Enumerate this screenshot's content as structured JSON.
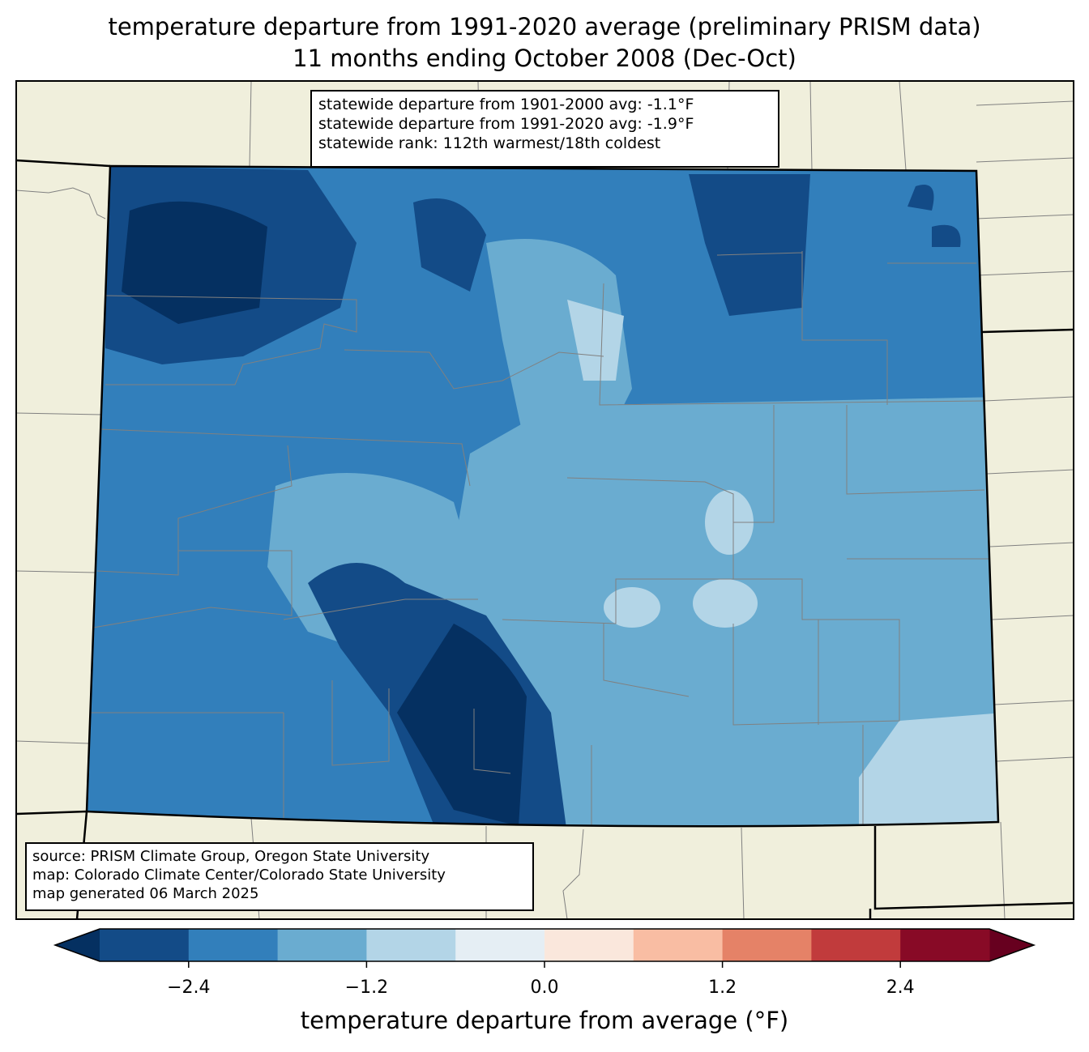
{
  "title": {
    "line1": "temperature departure from 1991-2020 average (preliminary PRISM data)",
    "line2": "11 months ending October 2008 (Dec-Oct)"
  },
  "stats_box": {
    "line1": "statewide departure from 1901-2000 avg: -1.1°F",
    "line2": "statewide departure from 1991-2020 avg: -1.9°F",
    "line3": "statewide rank: 112th warmest/18th coldest"
  },
  "source_box": {
    "line1": "source: PRISM Climate Group, Oregon State University",
    "line2": "map: Colorado Climate Center/Colorado State University",
    "line3": "map generated 06 March 2025"
  },
  "colorbar": {
    "label": "temperature departure from average (°F)",
    "ticks": [
      "−2.4",
      "−1.2",
      "0.0",
      "1.2",
      "2.4"
    ],
    "tick_values": [
      -2.4,
      -1.2,
      0.0,
      1.2,
      2.4
    ],
    "levels": [
      -3.0,
      -2.4,
      -1.8,
      -1.2,
      -0.6,
      0.0,
      0.6,
      1.2,
      1.8,
      2.4,
      3.0
    ],
    "colors": [
      "#134b87",
      "#327fbb",
      "#6aacd0",
      "#b3d5e7",
      "#e5eef4",
      "#fae7dc",
      "#f9bda3",
      "#e58267",
      "#c13b3c",
      "#880a26"
    ],
    "extend_low": "#053061",
    "extend_high": "#67001f"
  },
  "map_colors": {
    "land": "#f0efdc",
    "border": "#000000",
    "county": "#808080"
  }
}
